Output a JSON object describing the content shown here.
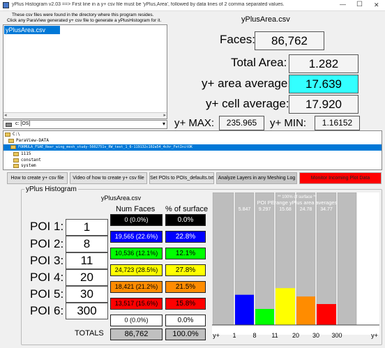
{
  "window": {
    "title": "yPlus Histogram v2.03 ==> First line in a y+ csv file must be 'yPlus,Area', followed by data lines of 2 comma separated values.",
    "minimize_glyph": "—",
    "maximize_glyph": "☐",
    "close_glyph": "✕"
  },
  "instructions": {
    "line1": "These csv files were found in the directory where this program resides.",
    "line2": "Click any ParaView generated y+ csv file to generate a yPlusHistogram for it."
  },
  "file_list": {
    "items": [
      "yPlusArea.csv"
    ]
  },
  "drive": {
    "value": "c: [OS]"
  },
  "folder_tree": {
    "items": [
      "C:\\",
      "ParaView-DATA",
      "FORMULA_FSAE_Rear_wing_mesh_study-5602751v_RW_test_1_6-119132c102a54_4chr_FetInitOK",
      "1115",
      "constant",
      "system"
    ]
  },
  "stats": {
    "file_name": "yPlusArea.csv",
    "faces_label": "Faces:",
    "faces_value": "86,762",
    "total_area_label": "Total Area:",
    "total_area_value": "1.282",
    "area_avg_label": "y+ area average:",
    "area_avg_value": "17.639",
    "cell_avg_label": "y+ cell average:",
    "cell_avg_value": "17.920",
    "max_label": "y+ MAX:",
    "max_value": "235.965",
    "min_label": "y+ MIN:",
    "min_value": "1.16152"
  },
  "toolbar": {
    "how_to_create": "How to create y+ csv file",
    "video": "Video of how to create y+ csv file",
    "set_pois": "Set POIs to POIs_defaults.txt",
    "analyze": "Analyze Layers in any Meshing Log",
    "monitor": "Monitor Incoming Plot Data"
  },
  "histogram": {
    "group_label": "yPlus Histogram",
    "file_name": "yPlusArea.csv",
    "col_faces": "Num Faces",
    "col_pct": "% of surface",
    "pois": [
      {
        "label": "POI 1:",
        "value": "1"
      },
      {
        "label": "POI 2:",
        "value": "8"
      },
      {
        "label": "POI 3:",
        "value": "11"
      },
      {
        "label": "POI 4:",
        "value": "20"
      },
      {
        "label": "POI 5:",
        "value": "30"
      },
      {
        "label": "POI 6:",
        "value": "300"
      }
    ],
    "rows": [
      {
        "faces": "0 (0.0%)",
        "pct": "0.0%",
        "color": "#000000",
        "text": "#ffffff"
      },
      {
        "faces": "19,565 (22.6%)",
        "pct": "22.8%",
        "color": "#0000ff",
        "text": "#ffffff"
      },
      {
        "faces": "10,536 (12.1%)",
        "pct": "12.1%",
        "color": "#00ff00",
        "text": "#000000"
      },
      {
        "faces": "24,723 (28.5%)",
        "pct": "27.8%",
        "color": "#ffff00",
        "text": "#000000"
      },
      {
        "faces": "18,421 (21.2%)",
        "pct": "21.5%",
        "color": "#ff8c00",
        "text": "#000000"
      },
      {
        "faces": "13,517 (15.6%)",
        "pct": "15.8%",
        "color": "#ff0000",
        "text": "#000000"
      },
      {
        "faces": "0 (0.0%)",
        "pct": "0.0%",
        "color": "#ffffff",
        "text": "#000000"
      }
    ],
    "totals_label": "TOTALS",
    "total_faces": "86,762",
    "total_pct": "100.0%"
  },
  "chart_data": {
    "type": "bar",
    "top_note": "** 100% of surface **",
    "subtitle": "POI PErange yPlus area averages",
    "range_averages": [
      "5.847",
      "9.297",
      "15.68",
      "24.78",
      "34.77"
    ],
    "x_ticks": [
      "y+",
      "1",
      "8",
      "11",
      "20",
      "30",
      "300",
      "y+"
    ],
    "categories": [
      "<1",
      "1-8",
      "8-11",
      "11-20",
      "20-30",
      "30-300",
      ">300"
    ],
    "values": [
      0.0,
      22.8,
      12.1,
      27.8,
      21.5,
      15.8,
      0.0
    ],
    "colors": [
      "#000000",
      "#0000ff",
      "#00ff00",
      "#ffff00",
      "#ff8c00",
      "#ff0000",
      "#ffffff"
    ],
    "ylim": [
      0,
      100
    ]
  }
}
